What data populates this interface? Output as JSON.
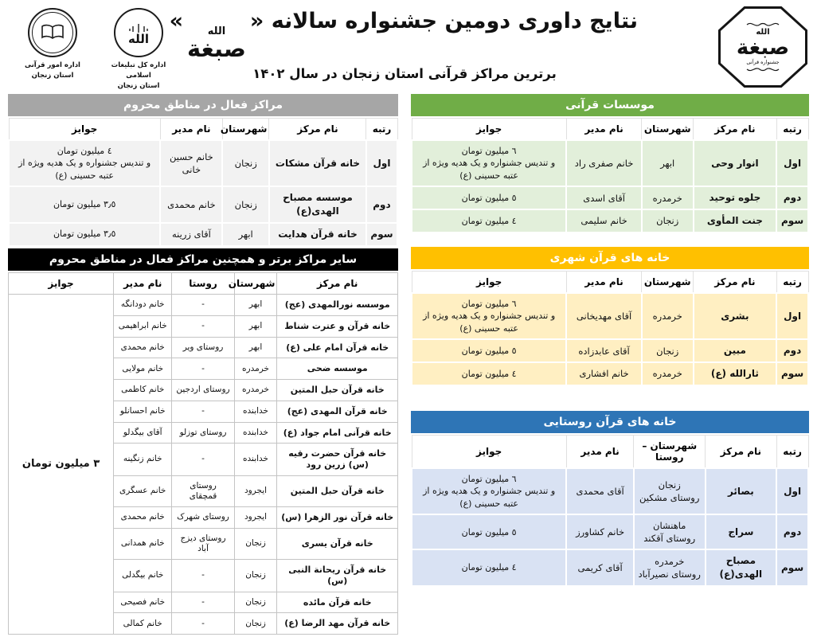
{
  "header": {
    "title": {
      "prefix": "نتایج داوری دومین جشنواره سالانه «",
      "calligraphy": "صبغة",
      "allah": "الله",
      "suffix": "»"
    },
    "subtitle": "برترین مراکز قرآنی استان زنجان در سال ۱۴۰۲",
    "logos": {
      "quran_affairs": {
        "caption": "اداره امور قرآنی\nاستان زنجان"
      },
      "islamic_propagation": {
        "symbol": "الله",
        "caption": "اداره کل تبلیغات اسلامی\nاستان زنجان"
      },
      "festival_seal": {
        "allah": "الله",
        "name": "صبغة",
        "subtitle": "جشنواره قرآنی"
      }
    }
  },
  "tables": {
    "institutions": {
      "title": "موسسات قرآنی",
      "accent": "#70ad47",
      "row_bg": "#e2efda",
      "columns": [
        {
          "key": "rank",
          "label": "رتبه"
        },
        {
          "key": "center",
          "label": "نام مرکز"
        },
        {
          "key": "county",
          "label": "شهرستان"
        },
        {
          "key": "manager",
          "label": "نام مدیر"
        },
        {
          "key": "prize",
          "label": "جوایز"
        }
      ],
      "rows": [
        {
          "rank": "اول",
          "center": "انوار وحی",
          "county": "ابهر",
          "manager": "خانم صفری راد",
          "prize": "٦ میلیون تومان\nو تندیس جشنواره و یک هدیه ویژه از عتبه حسینی (ع)"
        },
        {
          "rank": "دوم",
          "center": "جلوه توحید",
          "county": "خرمدره",
          "manager": "آقای اسدی",
          "prize": "٥ میلیون تومان"
        },
        {
          "rank": "سوم",
          "center": "جنت المأوی",
          "county": "زنجان",
          "manager": "خانم سلیمی",
          "prize": "٤ میلیون تومان"
        }
      ]
    },
    "deprived": {
      "title": "مراکز فعال در مناطق محروم",
      "accent": "#a6a6a6",
      "row_bg": "#f2f2f2",
      "columns": [
        {
          "key": "rank",
          "label": "رتبه"
        },
        {
          "key": "center",
          "label": "نام مرکز"
        },
        {
          "key": "county",
          "label": "شهرستان"
        },
        {
          "key": "manager",
          "label": "نام مدیر"
        },
        {
          "key": "prize",
          "label": "جوایز"
        }
      ],
      "rows": [
        {
          "rank": "اول",
          "center": "خانه قرآن مشکات",
          "county": "زنجان",
          "manager": "خانم حسین خانی",
          "prize": "٤ میلیون تومان\nو تندیس جشنواره و یک هدیه ویژه از عتبه حسینی (ع)"
        },
        {
          "rank": "دوم",
          "center": "موسسه مصباح الهدی(ع)",
          "county": "زنجان",
          "manager": "خانم محمدی",
          "prize": "٣٫٥ میلیون تومان"
        },
        {
          "rank": "سوم",
          "center": "خانه قرآن هدایت",
          "county": "ابهر",
          "manager": "آقای زرینه",
          "prize": "٣٫٥ میلیون تومان"
        }
      ]
    },
    "urban": {
      "title": "خانه های قرآن شهری",
      "accent": "#ffc000",
      "row_bg": "#ffefc2",
      "columns": [
        {
          "key": "rank",
          "label": "رتبه"
        },
        {
          "key": "center",
          "label": "نام مرکز"
        },
        {
          "key": "county",
          "label": "شهرستان"
        },
        {
          "key": "manager",
          "label": "نام مدیر"
        },
        {
          "key": "prize",
          "label": "جوایز"
        }
      ],
      "rows": [
        {
          "rank": "اول",
          "center": "بشری",
          "county": "خرمدره",
          "manager": "آقای مهدیخانی",
          "prize": "٦ میلیون تومان\nو تندیس جشنواره و یک هدیه ویژه از عتبه حسینی (ع)"
        },
        {
          "rank": "دوم",
          "center": "مبین",
          "county": "زنجان",
          "manager": "آقای عابدزاده",
          "prize": "٥ میلیون تومان"
        },
        {
          "rank": "سوم",
          "center": "ثارالله (ع)",
          "county": "خرمدره",
          "manager": "خانم افشاری",
          "prize": "٤ میلیون تومان"
        }
      ]
    },
    "rural": {
      "title": "خانه های قرآن روستایی",
      "accent": "#2e75b6",
      "row_bg": "#d9e2f3",
      "columns": [
        {
          "key": "rank",
          "label": "رتبه"
        },
        {
          "key": "center",
          "label": "نام مرکز"
        },
        {
          "key": "county",
          "label": "شهرستان – روستا"
        },
        {
          "key": "manager",
          "label": "نام مدیر"
        },
        {
          "key": "prize",
          "label": "جوایز"
        }
      ],
      "rows": [
        {
          "rank": "اول",
          "center": "بصائر",
          "county": "زنجان\nروستای مشکین",
          "manager": "آقای محمدی",
          "prize": "٦ میلیون تومان\nو تندیس جشنواره و یک هدیه ویژه از عتبه حسینی (ع)"
        },
        {
          "rank": "دوم",
          "center": "سراج",
          "county": "ماهنشان\nروستای آقکند",
          "manager": "خانم کشاورز",
          "prize": "٥ میلیون تومان"
        },
        {
          "rank": "سوم",
          "center": "مصباح الهدی(ع)",
          "county": "خرمدره\nروستای نصیرآباد",
          "manager": "آقای کریمی",
          "prize": "٤ میلیون تومان"
        }
      ]
    },
    "others": {
      "title": "سایر مراکز برتر و همچنین مراکز فعال در مناطق محروم",
      "accent": "#000000",
      "row_bg": "#ffffff",
      "merged_prize": "٣ میلیون تومان",
      "columns": [
        {
          "key": "center",
          "label": "نام مرکز"
        },
        {
          "key": "county",
          "label": "شهرستان"
        },
        {
          "key": "village",
          "label": "روستا"
        },
        {
          "key": "manager",
          "label": "نام مدیر"
        },
        {
          "key": "prize",
          "label": "جوایز"
        }
      ],
      "rows": [
        {
          "center": "موسسه نورالمهدی (عج)",
          "county": "ابهر",
          "village": "-",
          "manager": "خانم دودانگه"
        },
        {
          "center": "خانه قرآن و عترت شناط",
          "county": "ابهر",
          "village": "-",
          "manager": "خانم ابراهیمی"
        },
        {
          "center": "خانه قرآن امام علی (ع)",
          "county": "ابهر",
          "village": "روستای ویر",
          "manager": "خانم محمدی"
        },
        {
          "center": "موسسه ضحی",
          "county": "خرمدره",
          "village": "-",
          "manager": "خانم مولایی"
        },
        {
          "center": "خانه قرآن حبل المتین",
          "county": "خرمدره",
          "village": "روستای اردجین",
          "manager": "خانم کاظمی"
        },
        {
          "center": "خانه قرآن المهدی (عج)",
          "county": "خدابنده",
          "village": "-",
          "manager": "خانم احسانلو"
        },
        {
          "center": "خانه قرآنی امام جواد (ع)",
          "county": "خدابنده",
          "village": "روستای توزلو",
          "manager": "آقای بیگدلو"
        },
        {
          "center": "خانه قرآن حضرت رقیه (س) زرین رود",
          "county": "خدابنده",
          "village": "-",
          "manager": "خانم زنگینه"
        },
        {
          "center": "خانه قرآن حبل المتین",
          "county": "ایجرود",
          "village": "روستای قمچقای",
          "manager": "خانم عسگری"
        },
        {
          "center": "خانه قرآن نور الزهرا (س)",
          "county": "ایجرود",
          "village": "روستای شهرک",
          "manager": "خانم محمدی"
        },
        {
          "center": "خانه قرآن یسری",
          "county": "زنجان",
          "village": "روستای دیزج آباد",
          "manager": "خانم همدانی"
        },
        {
          "center": "خانه قرآن ریحانة النبی (س)",
          "county": "زنجان",
          "village": "-",
          "manager": "خانم بیگدلی"
        },
        {
          "center": "خانه قرآن مائده",
          "county": "زنجان",
          "village": "-",
          "manager": "خانم فصیحی"
        },
        {
          "center": "خانه قرآن مهد الرضا (ع)",
          "county": "زنجان",
          "village": "-",
          "manager": "خانم کمالی"
        }
      ]
    }
  }
}
